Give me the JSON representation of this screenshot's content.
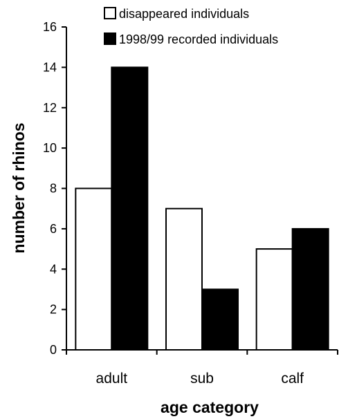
{
  "chart_data": {
    "type": "bar",
    "title": "",
    "xlabel": "age category",
    "ylabel": "number of rhinos",
    "categories": [
      "adult",
      "sub",
      "calf"
    ],
    "series": [
      {
        "name": "disappeared individuals",
        "values": [
          8,
          7,
          5
        ],
        "color": "#ffffff"
      },
      {
        "name": "1998/99 recorded individuals",
        "values": [
          14,
          3,
          6
        ],
        "color": "#000000"
      }
    ],
    "ylim": [
      0,
      16
    ],
    "yticks": [
      "0",
      "2",
      "4",
      "6",
      "8",
      "10",
      "12",
      "14",
      "16"
    ],
    "grid": false,
    "legend_position": "top-right"
  }
}
